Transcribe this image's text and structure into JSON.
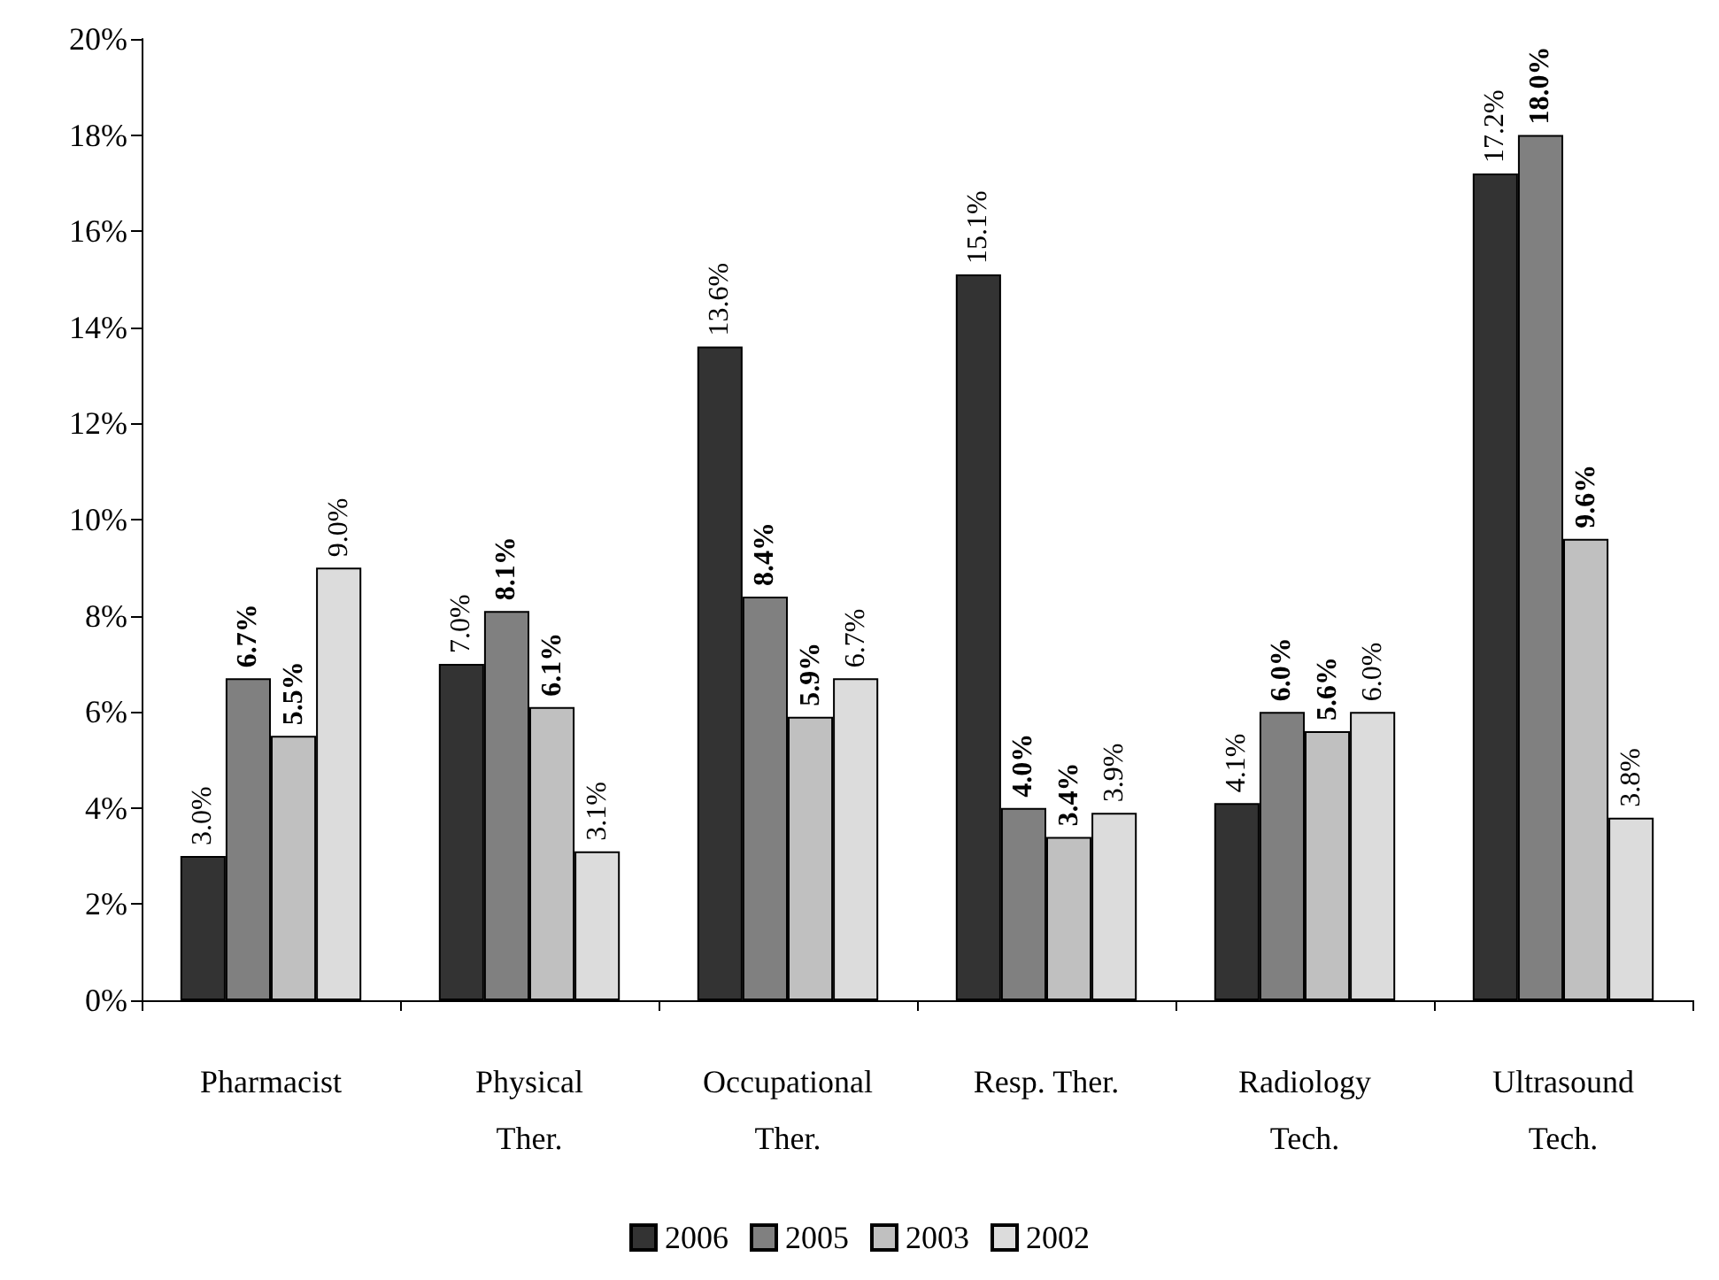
{
  "chart_data": {
    "type": "bar",
    "categories": [
      "Pharmacist",
      "Physical\nTher.",
      "Occupational\nTher.",
      "Resp. Ther.",
      "Radiology\nTech.",
      "Ultrasound\nTech."
    ],
    "series": [
      {
        "name": "2006",
        "color": "#333333",
        "values": [
          3.0,
          7.0,
          13.6,
          15.1,
          4.1,
          17.2
        ],
        "value_labels": [
          "3.0%",
          "7.0%",
          "13.6%",
          "15.1%",
          "4.1%",
          "17.2%"
        ]
      },
      {
        "name": "2005",
        "color": "#808080",
        "values": [
          6.7,
          8.1,
          8.4,
          4.0,
          6.0,
          18.0
        ],
        "value_labels": [
          "6.7%",
          "8.1%",
          "8.4%",
          "4.0%",
          "6.0%",
          "18.0%"
        ]
      },
      {
        "name": "2003",
        "color": "#c0c0c0",
        "values": [
          5.5,
          6.1,
          5.9,
          3.4,
          5.6,
          9.6
        ],
        "value_labels": [
          "5.5%",
          "6.1%",
          "5.9%",
          "3.4%",
          "5.6%",
          "9.6%"
        ]
      },
      {
        "name": "2002",
        "color": "#dcdcdc",
        "values": [
          9.0,
          3.1,
          6.7,
          3.9,
          6.0,
          3.8
        ],
        "value_labels": [
          "9.0%",
          "3.1%",
          "6.7%",
          "3.9%",
          "6.0%",
          "3.8%"
        ]
      }
    ],
    "ylim": [
      0,
      20
    ],
    "yticks": [
      {
        "value": 0,
        "label": "0%"
      },
      {
        "value": 2,
        "label": "2%"
      },
      {
        "value": 4,
        "label": "4%"
      },
      {
        "value": 6,
        "label": "6%"
      },
      {
        "value": 8,
        "label": "8%"
      },
      {
        "value": 10,
        "label": "10%"
      },
      {
        "value": 12,
        "label": "12%"
      },
      {
        "value": 14,
        "label": "14%"
      },
      {
        "value": 16,
        "label": "16%"
      },
      {
        "value": 18,
        "label": "18%"
      },
      {
        "value": 20,
        "label": "20%"
      }
    ],
    "grid": false,
    "legend": "bottom"
  }
}
